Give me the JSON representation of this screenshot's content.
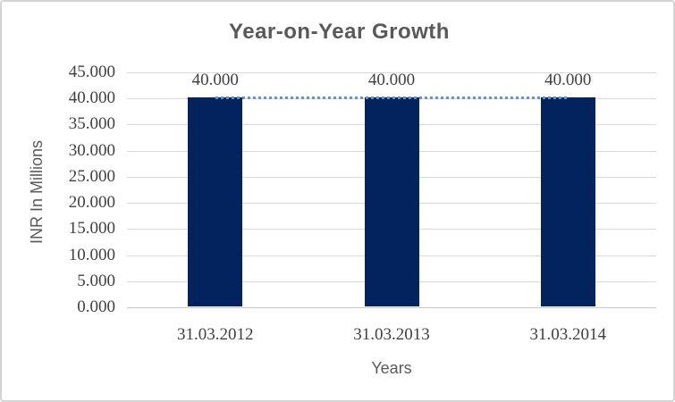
{
  "chart_data": {
    "type": "bar",
    "title": "Year-on-Year Growth",
    "categories": [
      "31.03.2012",
      "31.03.2013",
      "31.03.2014"
    ],
    "series": [
      {
        "name": "columns",
        "type": "bar",
        "values": [
          40.0,
          40.0,
          40.0
        ]
      },
      {
        "name": "trend",
        "type": "line",
        "style": "dotted",
        "values": [
          40.0,
          40.0,
          40.0
        ]
      }
    ],
    "data_labels": [
      "40.000",
      "40.000",
      "40.000"
    ],
    "xlabel": "Years",
    "ylabel": "INR In Millions",
    "ylim": [
      0,
      45
    ],
    "ytick_step": 5,
    "ytick_labels": [
      "0.000",
      "5.000",
      "10.000",
      "15.000",
      "20.000",
      "25.000",
      "30.000",
      "35.000",
      "40.000",
      "45.000"
    ],
    "grid": true,
    "legend": false
  },
  "colors": {
    "bar": "#03235e",
    "line": "#5e97ce",
    "grid": "#d9d9d9",
    "axis": "#c6c6c6",
    "label_text": "#404040",
    "title_text": "#595959",
    "frame_border": "#d4d4d4"
  }
}
